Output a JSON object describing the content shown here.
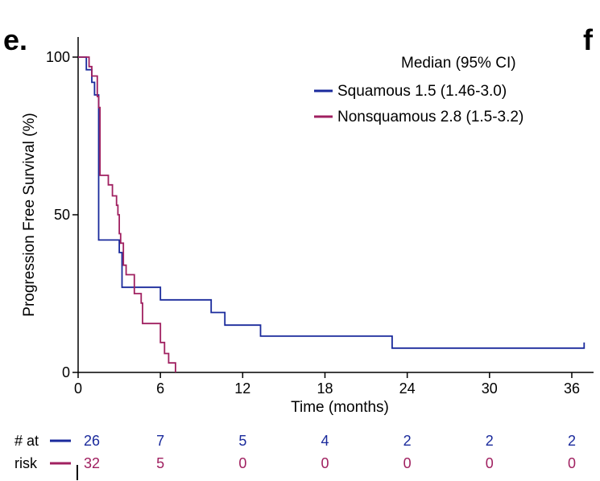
{
  "panel": {
    "label": "e.",
    "next_label": "f"
  },
  "colors": {
    "squamous": "#1a2a9c",
    "nonsquamous": "#a02060",
    "axis": "#000000"
  },
  "chart_data": {
    "type": "line",
    "step": true,
    "title": "",
    "xlabel": "Time (months)",
    "ylabel": "Progression Free Survival (%)",
    "xlim": [
      0,
      37
    ],
    "ylim": [
      0,
      100
    ],
    "xticks": [
      0,
      6,
      12,
      18,
      24,
      30,
      36
    ],
    "yticks": [
      0,
      50,
      100
    ],
    "grid": false,
    "legend": {
      "placement": "top-right",
      "title": "Median (95% CI)"
    },
    "series": [
      {
        "name": "Squamous 1.5 (1.46-3.0)",
        "color_key": "squamous",
        "points": [
          [
            0,
            100
          ],
          [
            0.6,
            100
          ],
          [
            0.6,
            96
          ],
          [
            1.0,
            96
          ],
          [
            1.0,
            92
          ],
          [
            1.2,
            92
          ],
          [
            1.2,
            88
          ],
          [
            1.5,
            88
          ],
          [
            1.5,
            42
          ],
          [
            3.0,
            42
          ],
          [
            3.0,
            38
          ],
          [
            3.2,
            38
          ],
          [
            3.2,
            27
          ],
          [
            6.0,
            27
          ],
          [
            6.0,
            23
          ],
          [
            9.7,
            23
          ],
          [
            9.7,
            19
          ],
          [
            10.7,
            19
          ],
          [
            10.7,
            15
          ],
          [
            13.3,
            15
          ],
          [
            13.3,
            11.5
          ],
          [
            22.9,
            11.5
          ],
          [
            22.9,
            7.7
          ],
          [
            36.9,
            7.7
          ],
          [
            36.9,
            9.5
          ]
        ]
      },
      {
        "name": "Nonsquamous 2.8 (1.5-3.2)",
        "color_key": "nonsquamous",
        "points": [
          [
            0,
            100
          ],
          [
            0.8,
            100
          ],
          [
            0.8,
            97
          ],
          [
            1.0,
            97
          ],
          [
            1.0,
            94
          ],
          [
            1.4,
            94
          ],
          [
            1.4,
            87.5
          ],
          [
            1.5,
            87.5
          ],
          [
            1.5,
            84
          ],
          [
            1.6,
            84
          ],
          [
            1.6,
            62.5
          ],
          [
            2.2,
            62.5
          ],
          [
            2.2,
            59.5
          ],
          [
            2.5,
            59.5
          ],
          [
            2.5,
            56
          ],
          [
            2.8,
            56
          ],
          [
            2.8,
            53
          ],
          [
            2.9,
            53
          ],
          [
            2.9,
            50
          ],
          [
            3.0,
            50
          ],
          [
            3.0,
            44
          ],
          [
            3.1,
            44
          ],
          [
            3.1,
            41
          ],
          [
            3.3,
            41
          ],
          [
            3.3,
            34
          ],
          [
            3.5,
            34
          ],
          [
            3.5,
            31
          ],
          [
            4.1,
            31
          ],
          [
            4.1,
            25
          ],
          [
            4.6,
            25
          ],
          [
            4.6,
            22
          ],
          [
            4.7,
            22
          ],
          [
            4.7,
            15.5
          ],
          [
            6.0,
            15.5
          ],
          [
            6.0,
            9.5
          ],
          [
            6.3,
            9.5
          ],
          [
            6.3,
            6
          ],
          [
            6.6,
            6
          ],
          [
            6.6,
            3
          ],
          [
            7.1,
            3
          ],
          [
            7.1,
            0
          ]
        ]
      }
    ],
    "risk_table": {
      "label_line1": "# at",
      "label_line2": "risk",
      "times": [
        0,
        6,
        12,
        18,
        24,
        30,
        36
      ],
      "squamous": [
        26,
        7,
        5,
        4,
        2,
        2,
        2
      ],
      "nonsquamous": [
        32,
        5,
        0,
        0,
        0,
        0,
        0
      ]
    }
  }
}
